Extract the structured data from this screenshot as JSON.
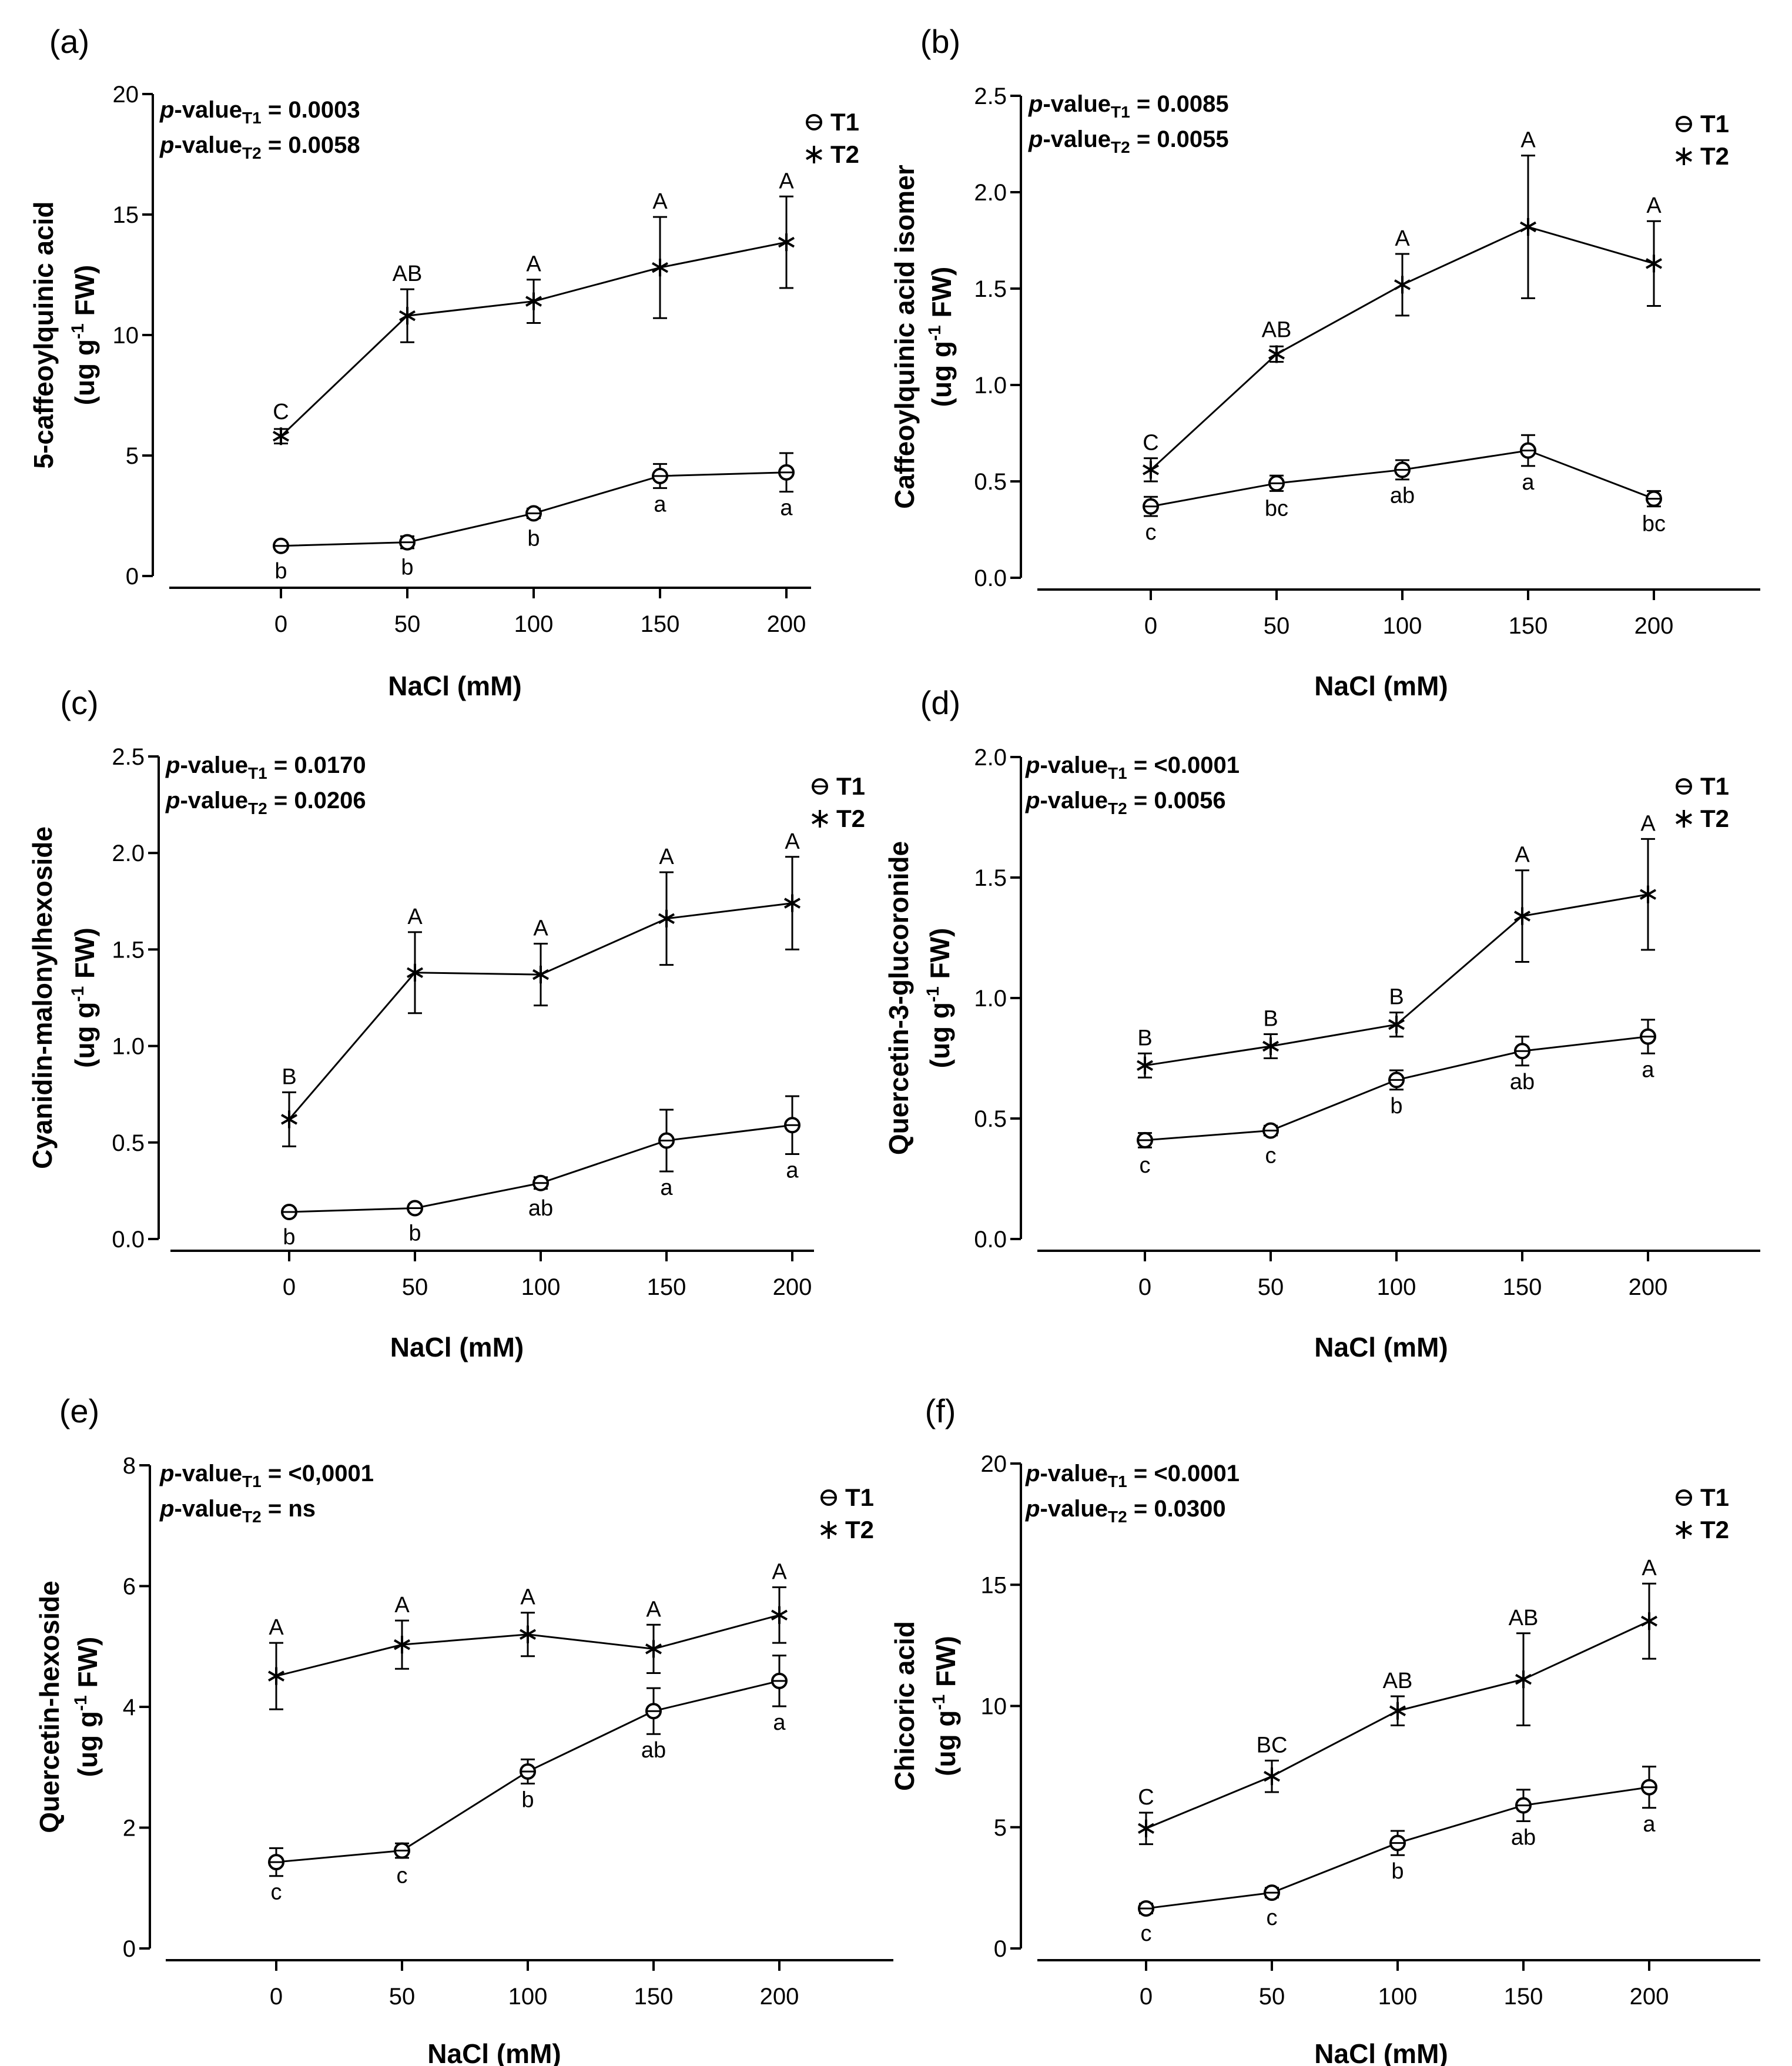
{
  "chart_data": [
    {
      "panel": "(a)",
      "type": "line",
      "ylabel_line1": "5-caffeoylquinic acid",
      "ylabel_line2": "(ug g",
      "ylabel_sup": "-1",
      "ylabel_line2_end": " FW)",
      "xlabel": "NaCl (mM)",
      "x": [
        0,
        50,
        100,
        150,
        200
      ],
      "xticks": [
        "0",
        "50",
        "100",
        "150",
        "200"
      ],
      "ylim": [
        0,
        20
      ],
      "yticks": [
        0,
        5,
        10,
        15,
        20
      ],
      "ytick_labels": [
        "0",
        "5",
        "10",
        "15",
        "20"
      ],
      "pvalues": [
        {
          "prefix": "p",
          "label": "-value",
          "sub": "T1",
          "value": " = 0.0003"
        },
        {
          "prefix": "p",
          "label": "-value",
          "sub": "T2",
          "value": " = 0.0058"
        }
      ],
      "series": [
        {
          "name": "T1",
          "marker": "circle",
          "values": [
            1.25,
            1.4,
            2.6,
            4.15,
            4.3
          ],
          "errors": [
            0.1,
            0.25,
            0.2,
            0.5,
            0.8
          ],
          "letters": [
            "b",
            "b",
            "b",
            "a",
            "a"
          ],
          "letter_pos": "below"
        },
        {
          "name": "T2",
          "marker": "star",
          "values": [
            5.8,
            10.8,
            11.4,
            12.8,
            13.85
          ],
          "errors": [
            0.3,
            1.1,
            0.9,
            2.1,
            1.9
          ],
          "letters": [
            "C",
            "AB",
            "A",
            "A",
            "A"
          ],
          "letter_pos": "above"
        }
      ]
    },
    {
      "panel": "(b)",
      "type": "line",
      "ylabel_line1": "Caffeoylquinic acid isomer",
      "ylabel_line2": "(ug g",
      "ylabel_sup": "-1",
      "ylabel_line2_end": " FW)",
      "xlabel": "NaCl (mM)",
      "x": [
        0,
        50,
        100,
        150,
        200
      ],
      "xticks": [
        "0",
        "50",
        "100",
        "150",
        "200"
      ],
      "ylim": [
        0,
        2.5
      ],
      "yticks": [
        0,
        0.5,
        1.0,
        1.5,
        2.0,
        2.5
      ],
      "ytick_labels": [
        "0.0",
        "0.5",
        "1.0",
        "1.5",
        "2.0",
        "2.5"
      ],
      "pvalues": [
        {
          "prefix": "p",
          "label": "-value",
          "sub": "T1",
          "value": " = 0.0085"
        },
        {
          "prefix": "p",
          "label": "-value",
          "sub": "T2",
          "value": " = 0.0055"
        }
      ],
      "series": [
        {
          "name": "T1",
          "marker": "circle",
          "values": [
            0.37,
            0.49,
            0.56,
            0.66,
            0.41
          ],
          "errors": [
            0.05,
            0.04,
            0.05,
            0.08,
            0.04
          ],
          "letters": [
            "c",
            "bc",
            "ab",
            "a",
            "bc"
          ],
          "letter_pos": "below"
        },
        {
          "name": "T2",
          "marker": "star",
          "values": [
            0.56,
            1.16,
            1.52,
            1.82,
            1.63
          ],
          "errors": [
            0.06,
            0.04,
            0.16,
            0.37,
            0.22
          ],
          "letters": [
            "C",
            "AB",
            "A",
            "A",
            "A"
          ],
          "letter_pos": "above"
        }
      ]
    },
    {
      "panel": "(c)",
      "type": "line",
      "ylabel_line1": "Cyanidin-malonylhexoside",
      "ylabel_line2": "(ug g",
      "ylabel_sup": "-1",
      "ylabel_line2_end": " FW)",
      "xlabel": "NaCl (mM)",
      "x": [
        0,
        50,
        100,
        150,
        200
      ],
      "xticks": [
        "0",
        "50",
        "100",
        "150",
        "200"
      ],
      "ylim": [
        0,
        2.5
      ],
      "yticks": [
        0,
        0.5,
        1.0,
        1.5,
        2.0,
        2.5
      ],
      "ytick_labels": [
        "0.0",
        "0.5",
        "1.0",
        "1.5",
        "2.0",
        "2.5"
      ],
      "pvalues": [
        {
          "prefix": "p",
          "label": "-value",
          "sub": "T1",
          "value": " = 0.0170"
        },
        {
          "prefix": "p",
          "label": "-value",
          "sub": "T2",
          "value": " = 0.0206"
        }
      ],
      "series": [
        {
          "name": "T1",
          "marker": "circle",
          "values": [
            0.14,
            0.16,
            0.29,
            0.51,
            0.59
          ],
          "errors": [
            0.01,
            0.02,
            0.03,
            0.16,
            0.15
          ],
          "letters": [
            "b",
            "b",
            "ab",
            "a",
            "a"
          ],
          "letter_pos": "below"
        },
        {
          "name": "T2",
          "marker": "star",
          "values": [
            0.62,
            1.38,
            1.37,
            1.66,
            1.74
          ],
          "errors": [
            0.14,
            0.21,
            0.16,
            0.24,
            0.24
          ],
          "letters": [
            "B",
            "A",
            "A",
            "A",
            "A"
          ],
          "letter_pos": "above"
        }
      ]
    },
    {
      "panel": "(d)",
      "type": "line",
      "ylabel_line1": "Quercetin-3-glucoronide",
      "ylabel_line2": "(ug g",
      "ylabel_sup": "-1",
      "ylabel_line2_end": " FW)",
      "xlabel": "NaCl (mM)",
      "x": [
        0,
        50,
        100,
        150,
        200
      ],
      "xticks": [
        "0",
        "50",
        "100",
        "150",
        "200"
      ],
      "ylim": [
        0,
        2.0
      ],
      "yticks": [
        0,
        0.5,
        1.0,
        1.5,
        2.0
      ],
      "ytick_labels": [
        "0.0",
        "0.5",
        "1.0",
        "1.5",
        "2.0"
      ],
      "pvalues": [
        {
          "prefix": "p",
          "label": "-value",
          "sub": "T1",
          "value": " = <0.0001"
        },
        {
          "prefix": "p",
          "label": "-value",
          "sub": "T2",
          "value": " = 0.0056"
        }
      ],
      "series": [
        {
          "name": "T1",
          "marker": "circle",
          "values": [
            0.41,
            0.45,
            0.66,
            0.78,
            0.84
          ],
          "errors": [
            0.03,
            0.02,
            0.04,
            0.06,
            0.07
          ],
          "letters": [
            "c",
            "c",
            "b",
            "ab",
            "a"
          ],
          "letter_pos": "below"
        },
        {
          "name": "T2",
          "marker": "star",
          "values": [
            0.72,
            0.8,
            0.89,
            1.34,
            1.43
          ],
          "errors": [
            0.05,
            0.05,
            0.05,
            0.19,
            0.23
          ],
          "letters": [
            "B",
            "B",
            "B",
            "A",
            "A"
          ],
          "letter_pos": "above"
        }
      ]
    },
    {
      "panel": "(e)",
      "type": "line",
      "ylabel_line1": "Quercetin-hexoside",
      "ylabel_line2": "(ug g",
      "ylabel_sup": "-1",
      "ylabel_line2_end": " FW)",
      "xlabel": "NaCl (mM)",
      "x": [
        0,
        50,
        100,
        150,
        200
      ],
      "xticks": [
        "0",
        "50",
        "100",
        "150",
        "200"
      ],
      "ylim": [
        0,
        8
      ],
      "yticks": [
        0,
        2,
        4,
        6,
        8
      ],
      "ytick_labels": [
        "0",
        "2",
        "4",
        "6",
        "8"
      ],
      "pvalues": [
        {
          "prefix": "p",
          "label": "-value",
          "sub": "T1",
          "value": " = <0,0001"
        },
        {
          "prefix": "p",
          "label": "-value",
          "sub": "T2",
          "value": " = ns"
        }
      ],
      "series": [
        {
          "name": "T1",
          "marker": "circle",
          "values": [
            1.43,
            1.62,
            2.93,
            3.93,
            4.43
          ],
          "errors": [
            0.23,
            0.12,
            0.2,
            0.38,
            0.42
          ],
          "letters": [
            "c",
            "c",
            "b",
            "ab",
            "a"
          ],
          "letter_pos": "below"
        },
        {
          "name": "T2",
          "marker": "star",
          "values": [
            4.51,
            5.03,
            5.2,
            4.96,
            5.52
          ],
          "errors": [
            0.55,
            0.4,
            0.36,
            0.4,
            0.46
          ],
          "letters": [
            "A",
            "A",
            "A",
            "A",
            "A"
          ],
          "letter_pos": "above"
        }
      ]
    },
    {
      "panel": "(f)",
      "type": "line",
      "ylabel_line1": "Chicoric acid",
      "ylabel_line2": "(ug g",
      "ylabel_sup": "-1",
      "ylabel_line2_end": " FW)",
      "xlabel": "NaCl (mM)",
      "x": [
        0,
        50,
        100,
        150,
        200
      ],
      "xticks": [
        "0",
        "50",
        "100",
        "150",
        "200"
      ],
      "ylim": [
        0,
        20
      ],
      "yticks": [
        0,
        5,
        10,
        15,
        20
      ],
      "ytick_labels": [
        "0",
        "5",
        "10",
        "15",
        "20"
      ],
      "pvalues": [
        {
          "prefix": "p",
          "label": "-value",
          "sub": "T1",
          "value": " = <0.0001"
        },
        {
          "prefix": "p",
          "label": "-value",
          "sub": "T2",
          "value": " = 0.0300"
        }
      ],
      "series": [
        {
          "name": "T1",
          "marker": "circle",
          "values": [
            1.65,
            2.3,
            4.35,
            5.9,
            6.65
          ],
          "errors": [
            0.2,
            0.2,
            0.5,
            0.65,
            0.85
          ],
          "letters": [
            "c",
            "c",
            "b",
            "ab",
            "a"
          ],
          "letter_pos": "below"
        },
        {
          "name": "T2",
          "marker": "star",
          "values": [
            4.95,
            7.1,
            9.8,
            11.1,
            13.5
          ],
          "errors": [
            0.65,
            0.65,
            0.6,
            1.9,
            1.55
          ],
          "letters": [
            "C",
            "BC",
            "AB",
            "AB",
            "A"
          ],
          "letter_pos": "above"
        }
      ]
    }
  ]
}
